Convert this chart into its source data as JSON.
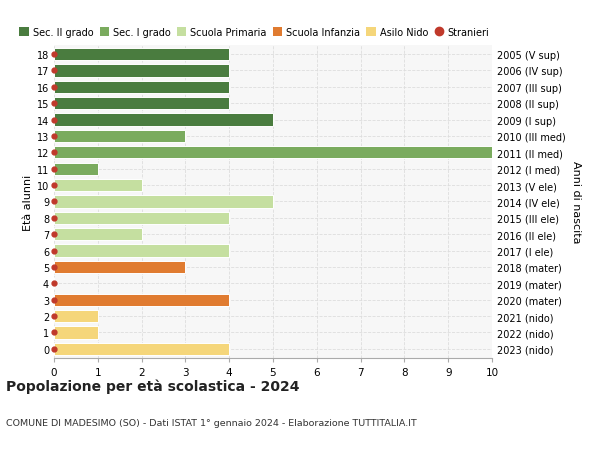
{
  "ages": [
    18,
    17,
    16,
    15,
    14,
    13,
    12,
    11,
    10,
    9,
    8,
    7,
    6,
    5,
    4,
    3,
    2,
    1,
    0
  ],
  "years": [
    "2005 (V sup)",
    "2006 (IV sup)",
    "2007 (III sup)",
    "2008 (II sup)",
    "2009 (I sup)",
    "2010 (III med)",
    "2011 (II med)",
    "2012 (I med)",
    "2013 (V ele)",
    "2014 (IV ele)",
    "2015 (III ele)",
    "2016 (II ele)",
    "2017 (I ele)",
    "2018 (mater)",
    "2019 (mater)",
    "2020 (mater)",
    "2021 (nido)",
    "2022 (nido)",
    "2023 (nido)"
  ],
  "values": [
    4,
    4,
    4,
    4,
    5,
    3,
    10,
    1,
    2,
    5,
    4,
    2,
    4,
    3,
    0,
    4,
    1,
    1,
    4
  ],
  "colors": [
    "#4a7c3f",
    "#4a7c3f",
    "#4a7c3f",
    "#4a7c3f",
    "#4a7c3f",
    "#7aab5e",
    "#7aab5e",
    "#7aab5e",
    "#c5dfa0",
    "#c5dfa0",
    "#c5dfa0",
    "#c5dfa0",
    "#c5dfa0",
    "#e07b30",
    "#e07b30",
    "#e07b30",
    "#f5d67a",
    "#f5d67a",
    "#f5d67a"
  ],
  "stranieri_color": "#c0392b",
  "legend_labels": [
    "Sec. II grado",
    "Sec. I grado",
    "Scuola Primaria",
    "Scuola Infanzia",
    "Asilo Nido",
    "Stranieri"
  ],
  "legend_colors": [
    "#4a7c3f",
    "#7aab5e",
    "#c5dfa0",
    "#e07b30",
    "#f5d67a",
    "#c0392b"
  ],
  "ylabel_left": "Età alunni",
  "ylabel_right": "Anni di nascita",
  "title": "Popolazione per età scolastica - 2024",
  "subtitle": "COMUNE DI MADESIMO (SO) - Dati ISTAT 1° gennaio 2024 - Elaborazione TUTTITALIA.IT",
  "xlim": [
    0,
    10
  ],
  "background_color": "#ffffff",
  "bar_bg_color": "#f7f7f7",
  "grid_color": "#dddddd"
}
